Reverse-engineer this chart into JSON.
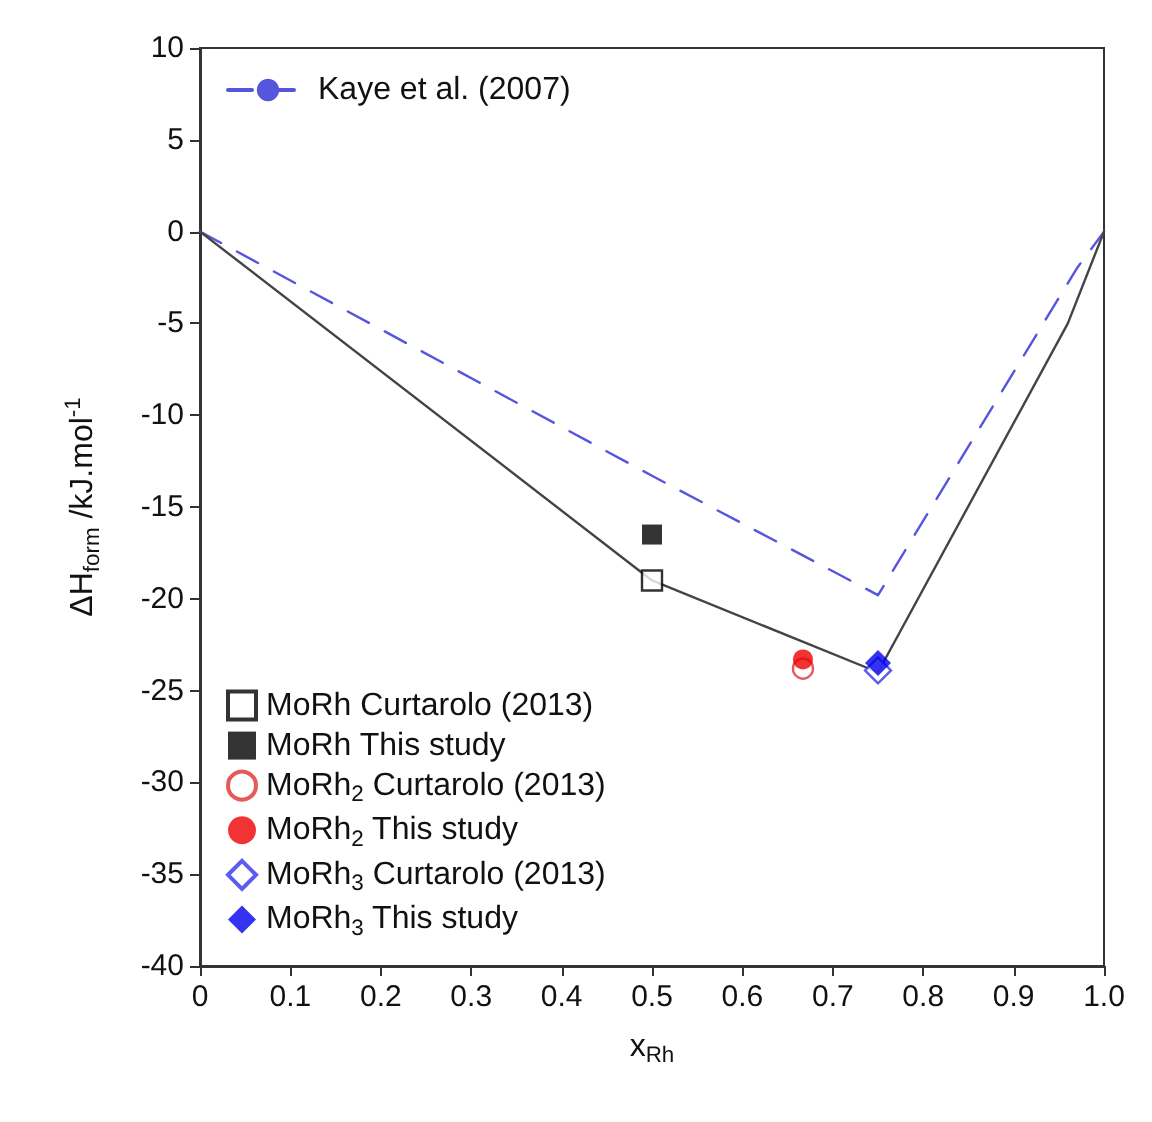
{
  "chart_data": {
    "type": "line",
    "xlabel": "x$_{Rh}$",
    "ylabel": "ΔH$_{form}$ /kJ.mol$^{-1}$",
    "xlim": [
      0,
      1
    ],
    "xticks": [
      0,
      0.1,
      0.2,
      0.3,
      0.4,
      0.5,
      0.6,
      0.7,
      0.8,
      0.9,
      {
        "value": 1,
        "label": "1.0"
      }
    ],
    "ylim": [
      -40,
      10
    ],
    "yticks": [
      -40,
      -35,
      -30,
      -25,
      -20,
      -15,
      -10,
      -5,
      0,
      5,
      10
    ],
    "grid": false,
    "legend": "left",
    "series": [
      {
        "name": "Kaye et al. (2007)",
        "color": "#5555dd",
        "line_style": "dashed",
        "marker": "none",
        "x": [
          0,
          0.5,
          0.75,
          0.97,
          1
        ],
        "values": [
          0,
          -13.3,
          -19.8,
          -2,
          0
        ]
      },
      {
        "color": "#444444",
        "line_style": "solid",
        "marker": "none",
        "x": [
          0,
          0.5,
          0.75,
          0.96,
          1
        ],
        "values": [
          0,
          -19,
          -24,
          -5,
          0
        ]
      },
      {
        "name": "MoRh Curtarolo (2013)",
        "type": "scatter",
        "color": "#000000",
        "marker": "square",
        "x": [
          0.5
        ],
        "values": [
          -19
        ]
      },
      {
        "name": "MoRh This study",
        "type": "scatter",
        "color": "#000000",
        "marker": "square",
        "x": [
          0.5
        ],
        "values": [
          -16.5
        ]
      },
      {
        "name": "MoRh$_{2}$ Curtarolo (2013)",
        "type": "scatter",
        "color": "#e03030",
        "marker": "circle",
        "x": [
          0.667
        ],
        "values": [
          -23.8
        ]
      },
      {
        "name": "MoRh$_{2}$ This study",
        "type": "scatter",
        "color": "#ee0000",
        "marker": "circle",
        "x": [
          0.667
        ],
        "values": [
          -23.3
        ]
      },
      {
        "name": "MoRh$_{3}$ Curtarolo (2013)",
        "type": "scatter",
        "color": "#3333ee",
        "marker": "diamond",
        "x": [
          0.75
        ],
        "values": [
          -23.9
        ]
      },
      {
        "name": "MoRh$_{3}$ This study",
        "type": "scatter",
        "color": "#0000ee",
        "marker": "diamond",
        "x": [
          0.75
        ],
        "values": [
          -23.5
        ]
      }
    ]
  }
}
